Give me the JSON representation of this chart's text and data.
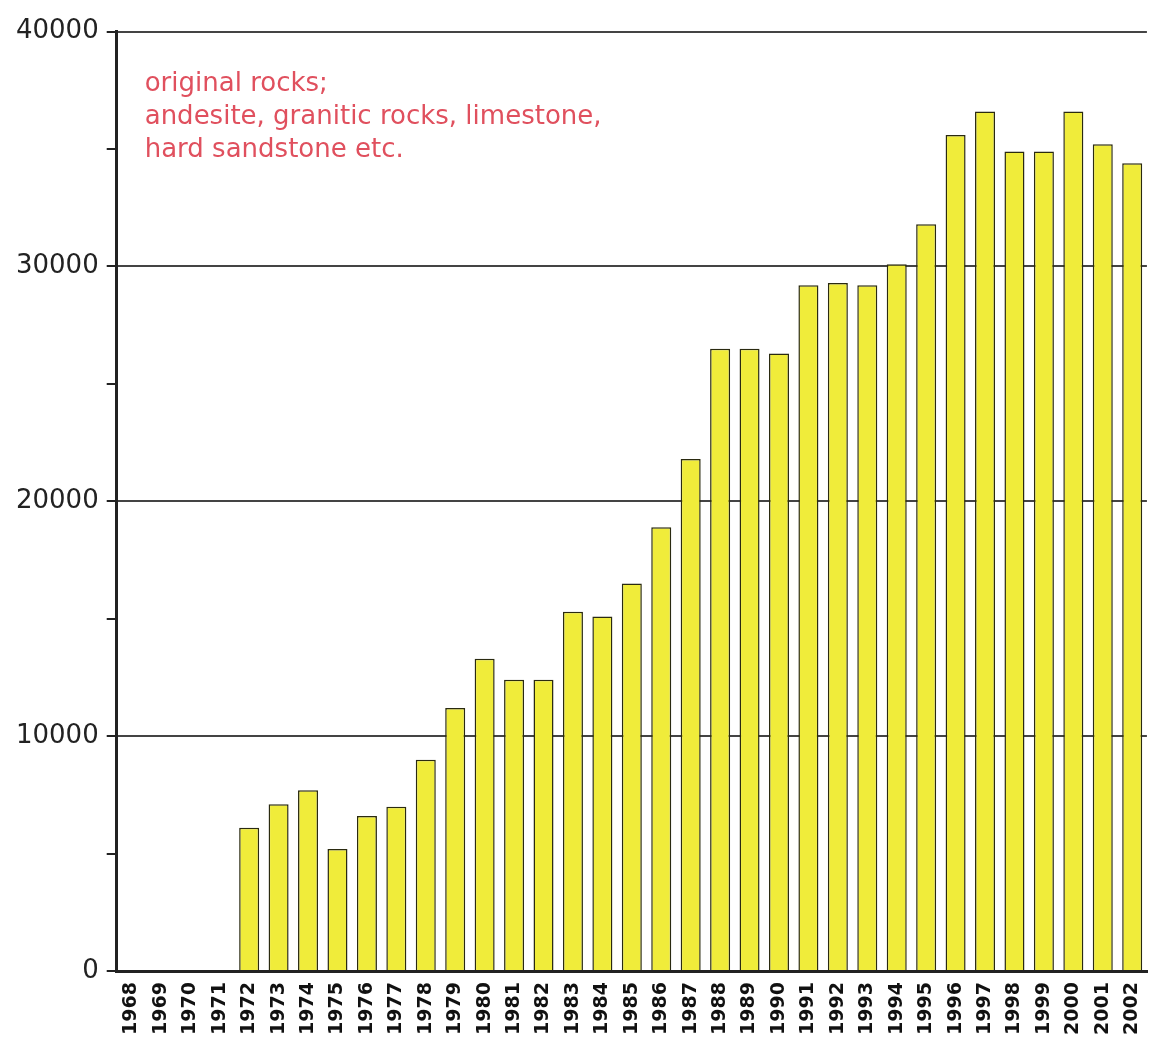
{
  "chart_data": {
    "type": "bar",
    "categories": [
      "1968",
      "1969",
      "1970",
      "1971",
      "1972",
      "1973",
      "1974",
      "1975",
      "1976",
      "1977",
      "1978",
      "1979",
      "1980",
      "1981",
      "1982",
      "1983",
      "1984",
      "1985",
      "1986",
      "1987",
      "1988",
      "1989",
      "1990",
      "1991",
      "1992",
      "1993",
      "1994",
      "1995",
      "1996",
      "1997",
      "1998",
      "1999",
      "2000",
      "2001",
      "2002"
    ],
    "values": [
      null,
      null,
      null,
      null,
      6100,
      7100,
      7700,
      5200,
      6600,
      7000,
      9000,
      11200,
      13300,
      12400,
      12400,
      15300,
      15100,
      16500,
      18900,
      21800,
      26500,
      26500,
      26300,
      29200,
      29300,
      29200,
      30100,
      31800,
      35600,
      36600,
      34900,
      34900,
      36600,
      35200,
      34400
    ],
    "color": "#f0ec3a",
    "ylim": [
      0,
      40000
    ],
    "yticks": [
      0,
      {
        "value": 5000,
        "label": null
      },
      10000,
      {
        "value": 15000,
        "label": null
      },
      20000,
      {
        "value": 25000,
        "label": null
      },
      30000,
      {
        "value": 35000,
        "label": null
      },
      40000
    ],
    "grid": "y",
    "annotations": [
      "original rocks;\nandesite, granitic rocks, limestone,\nhard sandstone etc."
    ]
  }
}
